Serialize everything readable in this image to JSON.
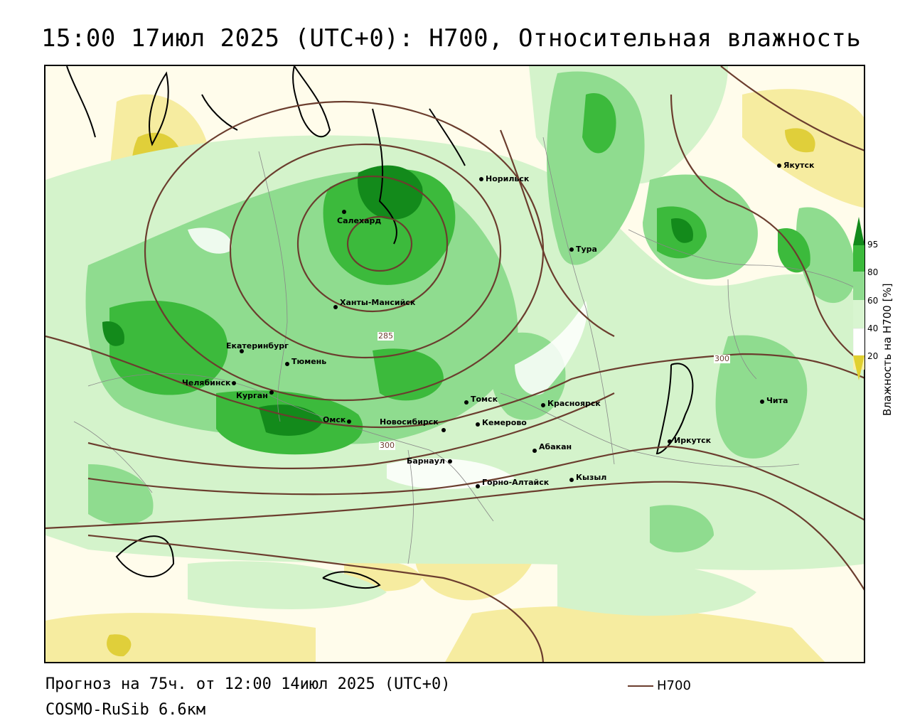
{
  "title": "15:00 17июл 2025 (UTC+0): H700, Относительная влажность",
  "footer": {
    "forecast": "Прогноз на 75ч. от 12:00 14июл 2025 (UTC+0)",
    "model": "COSMO-RuSib 6.6км",
    "legend_label": "H700"
  },
  "colorbar": {
    "title": "Влажность на H700 [%]",
    "ticks": [
      "95",
      "80",
      "60",
      "40",
      "20"
    ],
    "colors": [
      "#138a1b",
      "#3cba3c",
      "#8fdc8f",
      "#d8f5d0",
      "#ffffff",
      "#fbf0a8",
      "#e0d030"
    ]
  },
  "isolines": {
    "labels": [
      "285",
      "300",
      "300"
    ],
    "color": "#6b3d2e"
  },
  "cities": [
    {
      "name": "Якутск"
    },
    {
      "name": "Норильск"
    },
    {
      "name": "Салехард"
    },
    {
      "name": "Тура"
    },
    {
      "name": "Ханты-Мансийск"
    },
    {
      "name": "Екатеринбург"
    },
    {
      "name": "Тюмень"
    },
    {
      "name": "Челябинск"
    },
    {
      "name": "Курган"
    },
    {
      "name": "Омск"
    },
    {
      "name": "Томск"
    },
    {
      "name": "Новосибирск"
    },
    {
      "name": "Кемерово"
    },
    {
      "name": "Красноярск"
    },
    {
      "name": "Барнаул"
    },
    {
      "name": "Абакан"
    },
    {
      "name": "Горно-Алтайск"
    },
    {
      "name": "Кызыл"
    },
    {
      "name": "Иркутск"
    },
    {
      "name": "Чита"
    }
  ]
}
